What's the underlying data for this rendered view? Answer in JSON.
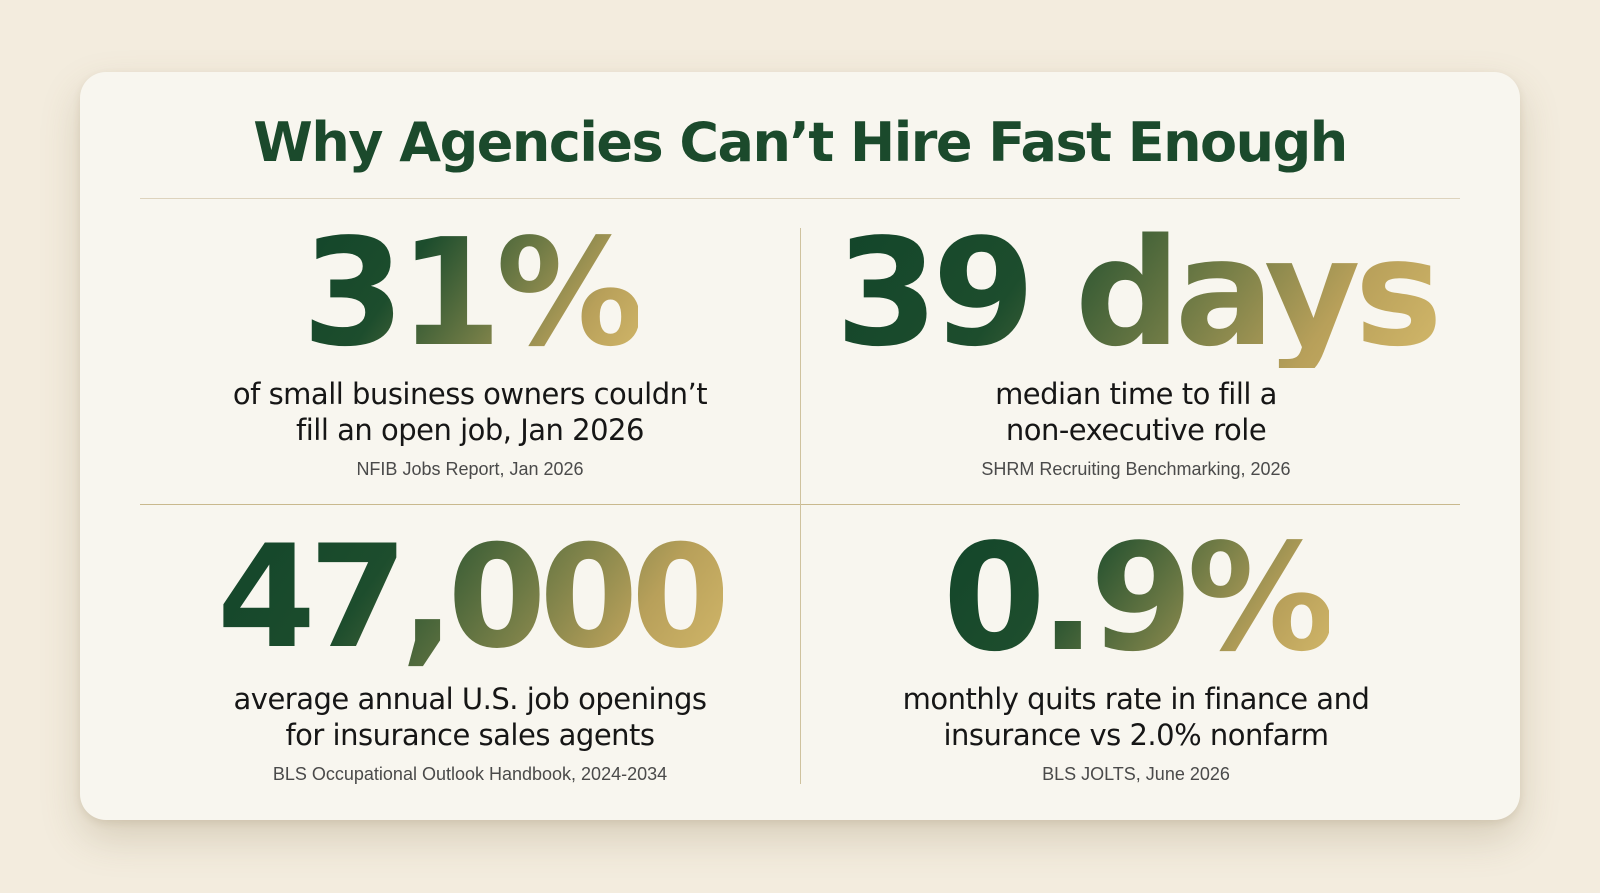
{
  "title": "Why Agencies Can’t Hire Fast Enough",
  "stats": [
    {
      "value": "31%",
      "description_line1": "of small business owners couldn’t",
      "description_line2": "fill an open job, Jan 2026",
      "source": "NFIB Jobs Report, Jan 2026"
    },
    {
      "value": "39 days",
      "description_line1": "median time to fill a",
      "description_line2": "non-executive role",
      "source": "SHRM Recruiting Benchmarking, 2026"
    },
    {
      "value": "47,000",
      "description_line1": "average annual U.S. job openings",
      "description_line2": "for insurance sales agents",
      "source": "BLS Occupational Outlook Handbook, 2024-2034"
    },
    {
      "value": "0.9%",
      "description_line1": "monthly quits rate in finance and",
      "description_line2": "insurance vs 2.0% nonfarm",
      "source": "BLS JOLTS, June 2026"
    }
  ],
  "colors": {
    "background": "#f3ecde",
    "card": "#f8f6ef",
    "title": "#1b4a2c",
    "gradient_start": "#12452a",
    "gradient_end": "#d3b86a",
    "divider": "#c9b98e"
  }
}
